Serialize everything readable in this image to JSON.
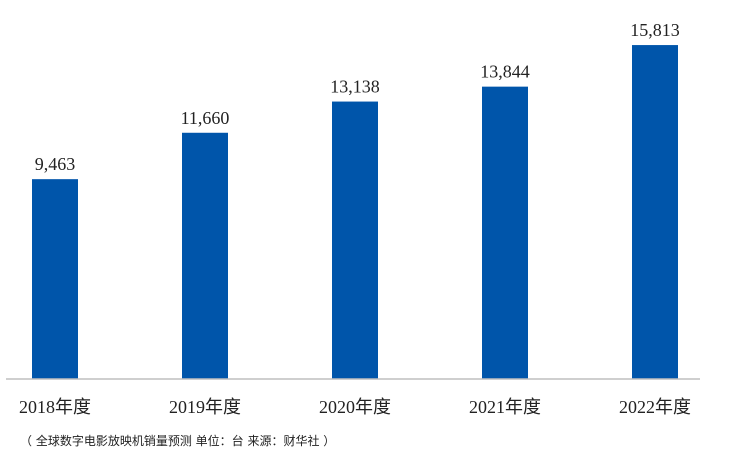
{
  "chart_data": {
    "type": "bar",
    "title": "",
    "xlabel": "",
    "ylabel": "",
    "categories": [
      "2018年度",
      "2019年度",
      "2020年度",
      "2021年度",
      "2022年度"
    ],
    "values": [
      9463,
      11660,
      13138,
      13844,
      15813
    ],
    "value_labels": [
      "9,463",
      "11,660",
      "13,138",
      "13,844",
      "15,813"
    ],
    "ylim": [
      0,
      17000
    ],
    "grid": false,
    "legend": "none",
    "bar_color": "#0055AA",
    "axis_color": "#BFBFBF"
  },
  "footnote": "（ 全球数字电影放映机销量预测   单位：台    来源：财华社 ）"
}
